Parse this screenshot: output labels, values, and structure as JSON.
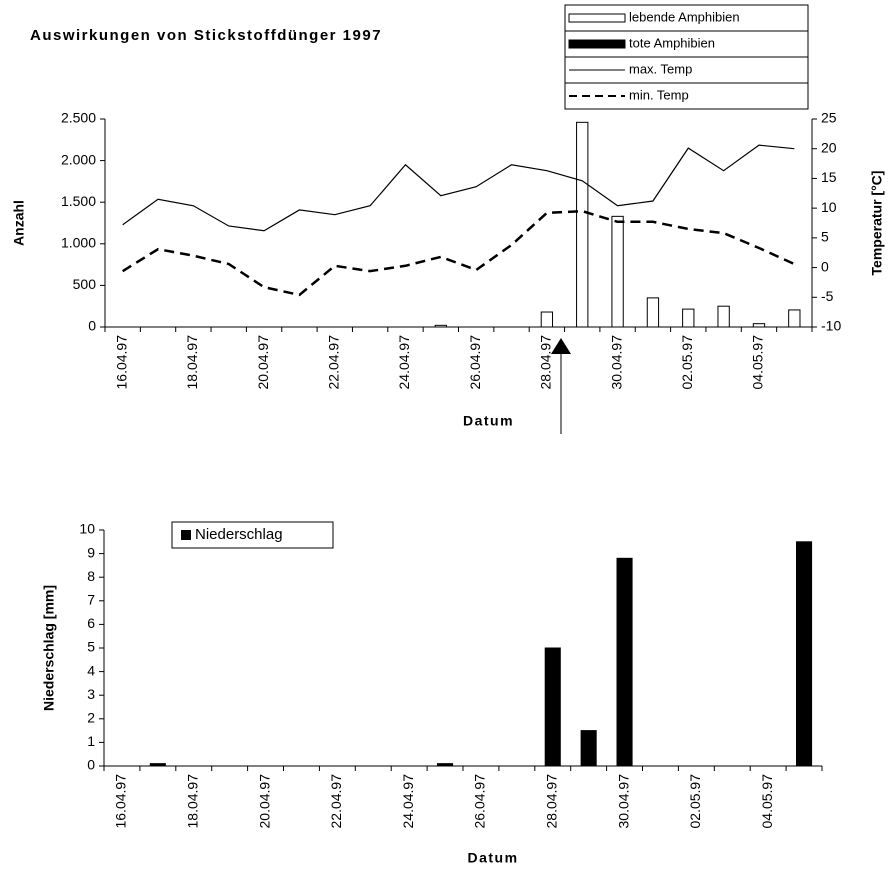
{
  "chart_data": [
    {
      "type": "bar",
      "title": "Auswirkungen von Stickstoffdünger 1997",
      "x_label": "Datum",
      "y_label": "Anzahl",
      "y2_label": "Temperatur [°C]",
      "categories": [
        "16.04.97",
        null,
        "18.04.97",
        null,
        "20.04.97",
        null,
        "22.04.97",
        null,
        "24.04.97",
        null,
        "26.04.97",
        null,
        "28.04.97",
        null,
        "30.04.97",
        null,
        "02.05.97",
        null,
        "04.05.97",
        null
      ],
      "series": [
        {
          "name": "lebende Amphibien",
          "type": "bar",
          "color": "#ffffff",
          "values": [
            0,
            0,
            0,
            0,
            0,
            0,
            0,
            0,
            0,
            20,
            0,
            0,
            180,
            2460,
            1330,
            350,
            215,
            250,
            40,
            205
          ]
        },
        {
          "name": "tote Amphibien",
          "type": "bar",
          "color": "#000000",
          "values": [
            0,
            0,
            0,
            0,
            0,
            0,
            0,
            0,
            0,
            0,
            0,
            0,
            0,
            0,
            0,
            0,
            0,
            0,
            0,
            0
          ]
        },
        {
          "name": "max. Temp",
          "type": "line",
          "axis": "y2",
          "color": "#000000",
          "style": "solid",
          "values": [
            7.2,
            11.5,
            10.4,
            7.0,
            6.2,
            9.7,
            8.9,
            10.4,
            17.3,
            12.1,
            13.6,
            17.3,
            16.3,
            14.6,
            10.4,
            11.2,
            20.1,
            16.3,
            20.6,
            20.0
          ]
        },
        {
          "name": "min. Temp",
          "type": "line",
          "axis": "y2",
          "color": "#000000",
          "style": "dashed",
          "values": [
            -0.6,
            3.1,
            2.0,
            0.6,
            -3.3,
            -4.6,
            0.3,
            -0.6,
            0.3,
            1.8,
            -0.4,
            3.8,
            9.2,
            9.5,
            7.7,
            7.7,
            6.5,
            5.8,
            3.3,
            0.6
          ]
        }
      ],
      "ylim": [
        0,
        2500
      ],
      "yticks": [
        0,
        500,
        {
          "value": 1000,
          "label": "1.000"
        },
        {
          "value": 1500,
          "label": "1.500"
        },
        {
          "value": 2000,
          "label": "2.000"
        },
        {
          "value": 2500,
          "label": "2.500"
        }
      ],
      "y2lim": [
        -10,
        25
      ],
      "y2ticks": [
        -10,
        -5,
        0,
        5,
        10,
        15,
        20,
        25
      ],
      "legend": "top-right"
    },
    {
      "type": "bar",
      "x_label": "Datum",
      "y_label": "Niederschlag [mm]",
      "categories": [
        "16.04.97",
        null,
        "18.04.97",
        null,
        "20.04.97",
        null,
        "22.04.97",
        null,
        "24.04.97",
        null,
        "26.04.97",
        null,
        "28.04.97",
        null,
        "30.04.97",
        null,
        "02.05.97",
        null,
        "04.05.97",
        null
      ],
      "series": [
        {
          "name": "Niederschlag",
          "type": "bar",
          "color": "#000000",
          "values": [
            0,
            0.1,
            0,
            0,
            0,
            0,
            0,
            0,
            0,
            0.1,
            0,
            0,
            5.0,
            1.5,
            8.8,
            0,
            0,
            0,
            0,
            9.5
          ]
        }
      ],
      "ylim": [
        0,
        10
      ],
      "yticks": [
        0,
        1,
        2,
        3,
        4,
        5,
        6,
        7,
        8,
        9,
        10
      ],
      "legend": "top-left"
    }
  ]
}
